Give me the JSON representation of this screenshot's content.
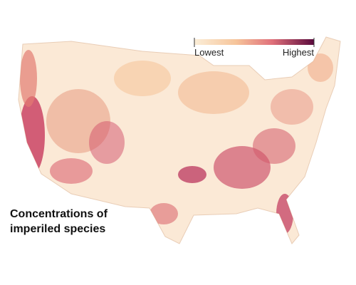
{
  "legend": {
    "low_label": "Lowest",
    "high_label": "Highest"
  },
  "title_lines": [
    "Concentrations of",
    "imperiled species"
  ]
}
